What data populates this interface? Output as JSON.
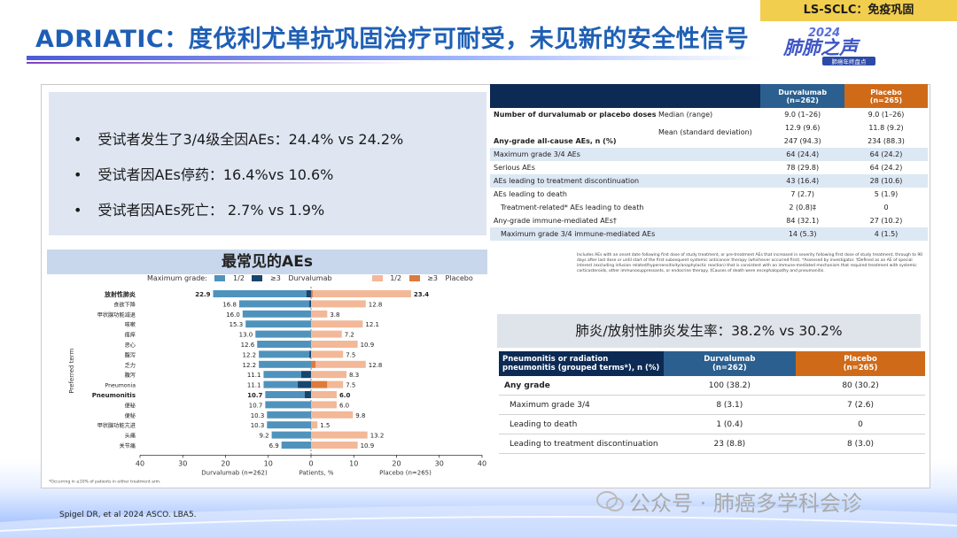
{
  "header": {
    "tag": "LS-SCLC：免疫巩固",
    "title": "ADRIATIC：度伐利尤单抗巩固治疗可耐受，未见新的安全性信号",
    "logo_year": "2024",
    "logo_text": "肺肺之声",
    "logo_sub": "肺癌年终盘点"
  },
  "summary": {
    "bullets": [
      "受试者发生了3/4级全因AEs：24.4% vs 24.2%",
      "受试者因AEs停药：16.4%vs 10.6%",
      "受试者因AEs死亡： 2.7% vs 1.9%"
    ]
  },
  "ae_section": {
    "title": "最常见的AEs",
    "legend": {
      "prefix": "Maximum grade:",
      "g12": "1/2",
      "g3": "≥3",
      "durva": "Durvalumab",
      "placebo": "Placebo"
    },
    "footnote": "*Occurring in ≥10% of patients in either treatment arm."
  },
  "chart_data": {
    "type": "bar",
    "title": "",
    "ylabel": "Preferred term",
    "xlabel": "Patients, %",
    "left_label": "Durvalumab (n=262)",
    "right_label": "Placebo (n=265)",
    "xlim": [
      -40,
      40
    ],
    "x_ticks": [
      "40",
      "30",
      "20",
      "10",
      "0",
      "10",
      "20",
      "30",
      "40"
    ],
    "colors": {
      "durva_g12": "#4f93bd",
      "durva_g3": "#16456e",
      "placebo_g12": "#f2b898",
      "placebo_g3": "#dd7a3c"
    },
    "categories": [
      "放射性肺炎",
      "食欲下降",
      "甲状腺功能减退",
      "咳嗽",
      "瘙痒",
      "恶心",
      "腹泻",
      "乏力",
      "腹泻",
      "Pneumonia",
      "Pneumonitis",
      "便秘",
      "便秘",
      "甲状腺功能亢进",
      "头痛",
      "关节痛"
    ],
    "bold_categories": [
      0,
      10
    ],
    "series": [
      {
        "name": "Durvalumab",
        "total": [
          22.9,
          16.8,
          16.0,
          15.3,
          13.0,
          12.6,
          12.2,
          12.2,
          11.1,
          11.1,
          10.7,
          10.7,
          10.3,
          10.3,
          9.2,
          6.9
        ],
        "grade3": [
          1.1,
          0.4,
          0.0,
          0.0,
          0.0,
          0.0,
          0.4,
          0.0,
          2.3,
          3.1,
          1.5,
          0.0,
          0.0,
          0.0,
          0.0,
          0.0
        ]
      },
      {
        "name": "Placebo",
        "total": [
          23.4,
          12.8,
          3.8,
          12.1,
          7.2,
          10.9,
          7.5,
          12.8,
          8.3,
          7.5,
          6.0,
          6.0,
          9.8,
          1.5,
          13.2,
          10.9
        ],
        "grade3": [
          0.4,
          0.0,
          0.0,
          0.0,
          0.0,
          0.0,
          0.0,
          1.1,
          0.0,
          3.8,
          0.0,
          0.0,
          0.0,
          0.0,
          0.0,
          0.0
        ]
      }
    ],
    "labels_left": [
      "22.9",
      "16.8",
      "16.0",
      "15.3",
      "13.0",
      "12.6",
      "12.2",
      "12.2",
      "11.1",
      "11.1",
      "10.7",
      "10.7",
      "10.3",
      "10.3",
      "9.2",
      "6.9"
    ],
    "labels_right": [
      "23.4",
      "12.8",
      "3.8",
      "12.1",
      "7.2",
      "10.9",
      "7.5",
      "12.8",
      "8.3",
      "7.5",
      "6.0",
      "6.0",
      "9.8",
      "1.5",
      "13.2",
      "10.9"
    ]
  },
  "safety_table": {
    "col_durva": "Durvalumab",
    "col_durva_n": "(n=262)",
    "col_placebo": "Placebo",
    "col_placebo_n": "(n=265)",
    "rows": [
      {
        "label": "Number of durvalumab or placebo doses",
        "sub": "Median (range)",
        "d": "9.0 (1–26)",
        "p": "9.0 (1–26)",
        "bold": true,
        "shade": false
      },
      {
        "label": "",
        "sub": "Mean (standard deviation)",
        "d": "12.9 (9.6)",
        "p": "11.8 (9.2)",
        "bold": false,
        "shade": false
      },
      {
        "label": "Any-grade all-cause AEs, n (%)",
        "sub": "",
        "d": "247 (94.3)",
        "p": "234 (88.3)",
        "bold": true,
        "shade": false
      },
      {
        "label": "Maximum grade 3/4 AEs",
        "sub": "",
        "d": "64 (24.4)",
        "p": "64 (24.2)",
        "bold": false,
        "shade": true
      },
      {
        "label": "Serious AEs",
        "sub": "",
        "d": "78 (29.8)",
        "p": "64 (24.2)",
        "bold": false,
        "shade": false
      },
      {
        "label": "AEs leading to treatment discontinuation",
        "sub": "",
        "d": "43 (16.4)",
        "p": "28 (10.6)",
        "bold": false,
        "shade": true
      },
      {
        "label": "AEs leading to death",
        "sub": "",
        "d": "7 (2.7)",
        "p": "5 (1.9)",
        "bold": false,
        "shade": false
      },
      {
        "label": "Treatment-related* AEs leading to death",
        "sub": "",
        "d": "2 (0.8)‡",
        "p": "0",
        "bold": false,
        "shade": false,
        "indent": true
      },
      {
        "label": "Any-grade immune-mediated AEs†",
        "sub": "",
        "d": "84 (32.1)",
        "p": "27 (10.2)",
        "bold": false,
        "shade": false
      },
      {
        "label": "Maximum grade 3/4 immune-mediated AEs",
        "sub": "",
        "d": "14 (5.3)",
        "p": "4 (1.5)",
        "bold": false,
        "shade": true,
        "indent": true
      }
    ],
    "footnote": "Includes AEs with an onset date following first dose of study treatment, or pre-treatment AEs that increased in severity following first dose of study treatment, through to 90 days after last dose or until start of the first subsequent systemic anticancer therapy (whichever occurred first). *Assessed by investigator. †Defined as an AE of special interest (excluding infusion related/hypersensitivity/anaphylactic reaction) that is consistent with an immune-mediated mechanism that required treatment with systemic corticosteroids, other immunosuppressants, or endocrine therapy. ‡Causes of death were encephalopathy and pneumonitis."
  },
  "pneumonitis": {
    "title": "肺炎/放射性肺炎发生率：38.2% vs 30.2%",
    "header_label": "Pneumonitis or radiation pneumonitis (grouped terms*), n (%)",
    "col_durva": "Durvalumab",
    "col_durva_n": "(n=262)",
    "col_placebo": "Placebo",
    "col_placebo_n": "(n=265)",
    "rows": [
      {
        "label": "Any grade",
        "d": "100 (38.2)",
        "p": "80 (30.2)",
        "bold": true
      },
      {
        "label": "Maximum grade 3/4",
        "d": "8 (3.1)",
        "p": "7 (2.6)",
        "bold": false
      },
      {
        "label": "Leading to death",
        "d": "1 (0.4)",
        "p": "0",
        "bold": false
      },
      {
        "label": "Leading to treatment discontinuation",
        "d": "23 (8.8)",
        "p": "8 (3.0)",
        "bold": false
      }
    ]
  },
  "footer": {
    "reference": "Spigel DR, et al 2024 ASCO. LBA5.",
    "watermark": "公众号 · 肺癌多学科会诊"
  }
}
